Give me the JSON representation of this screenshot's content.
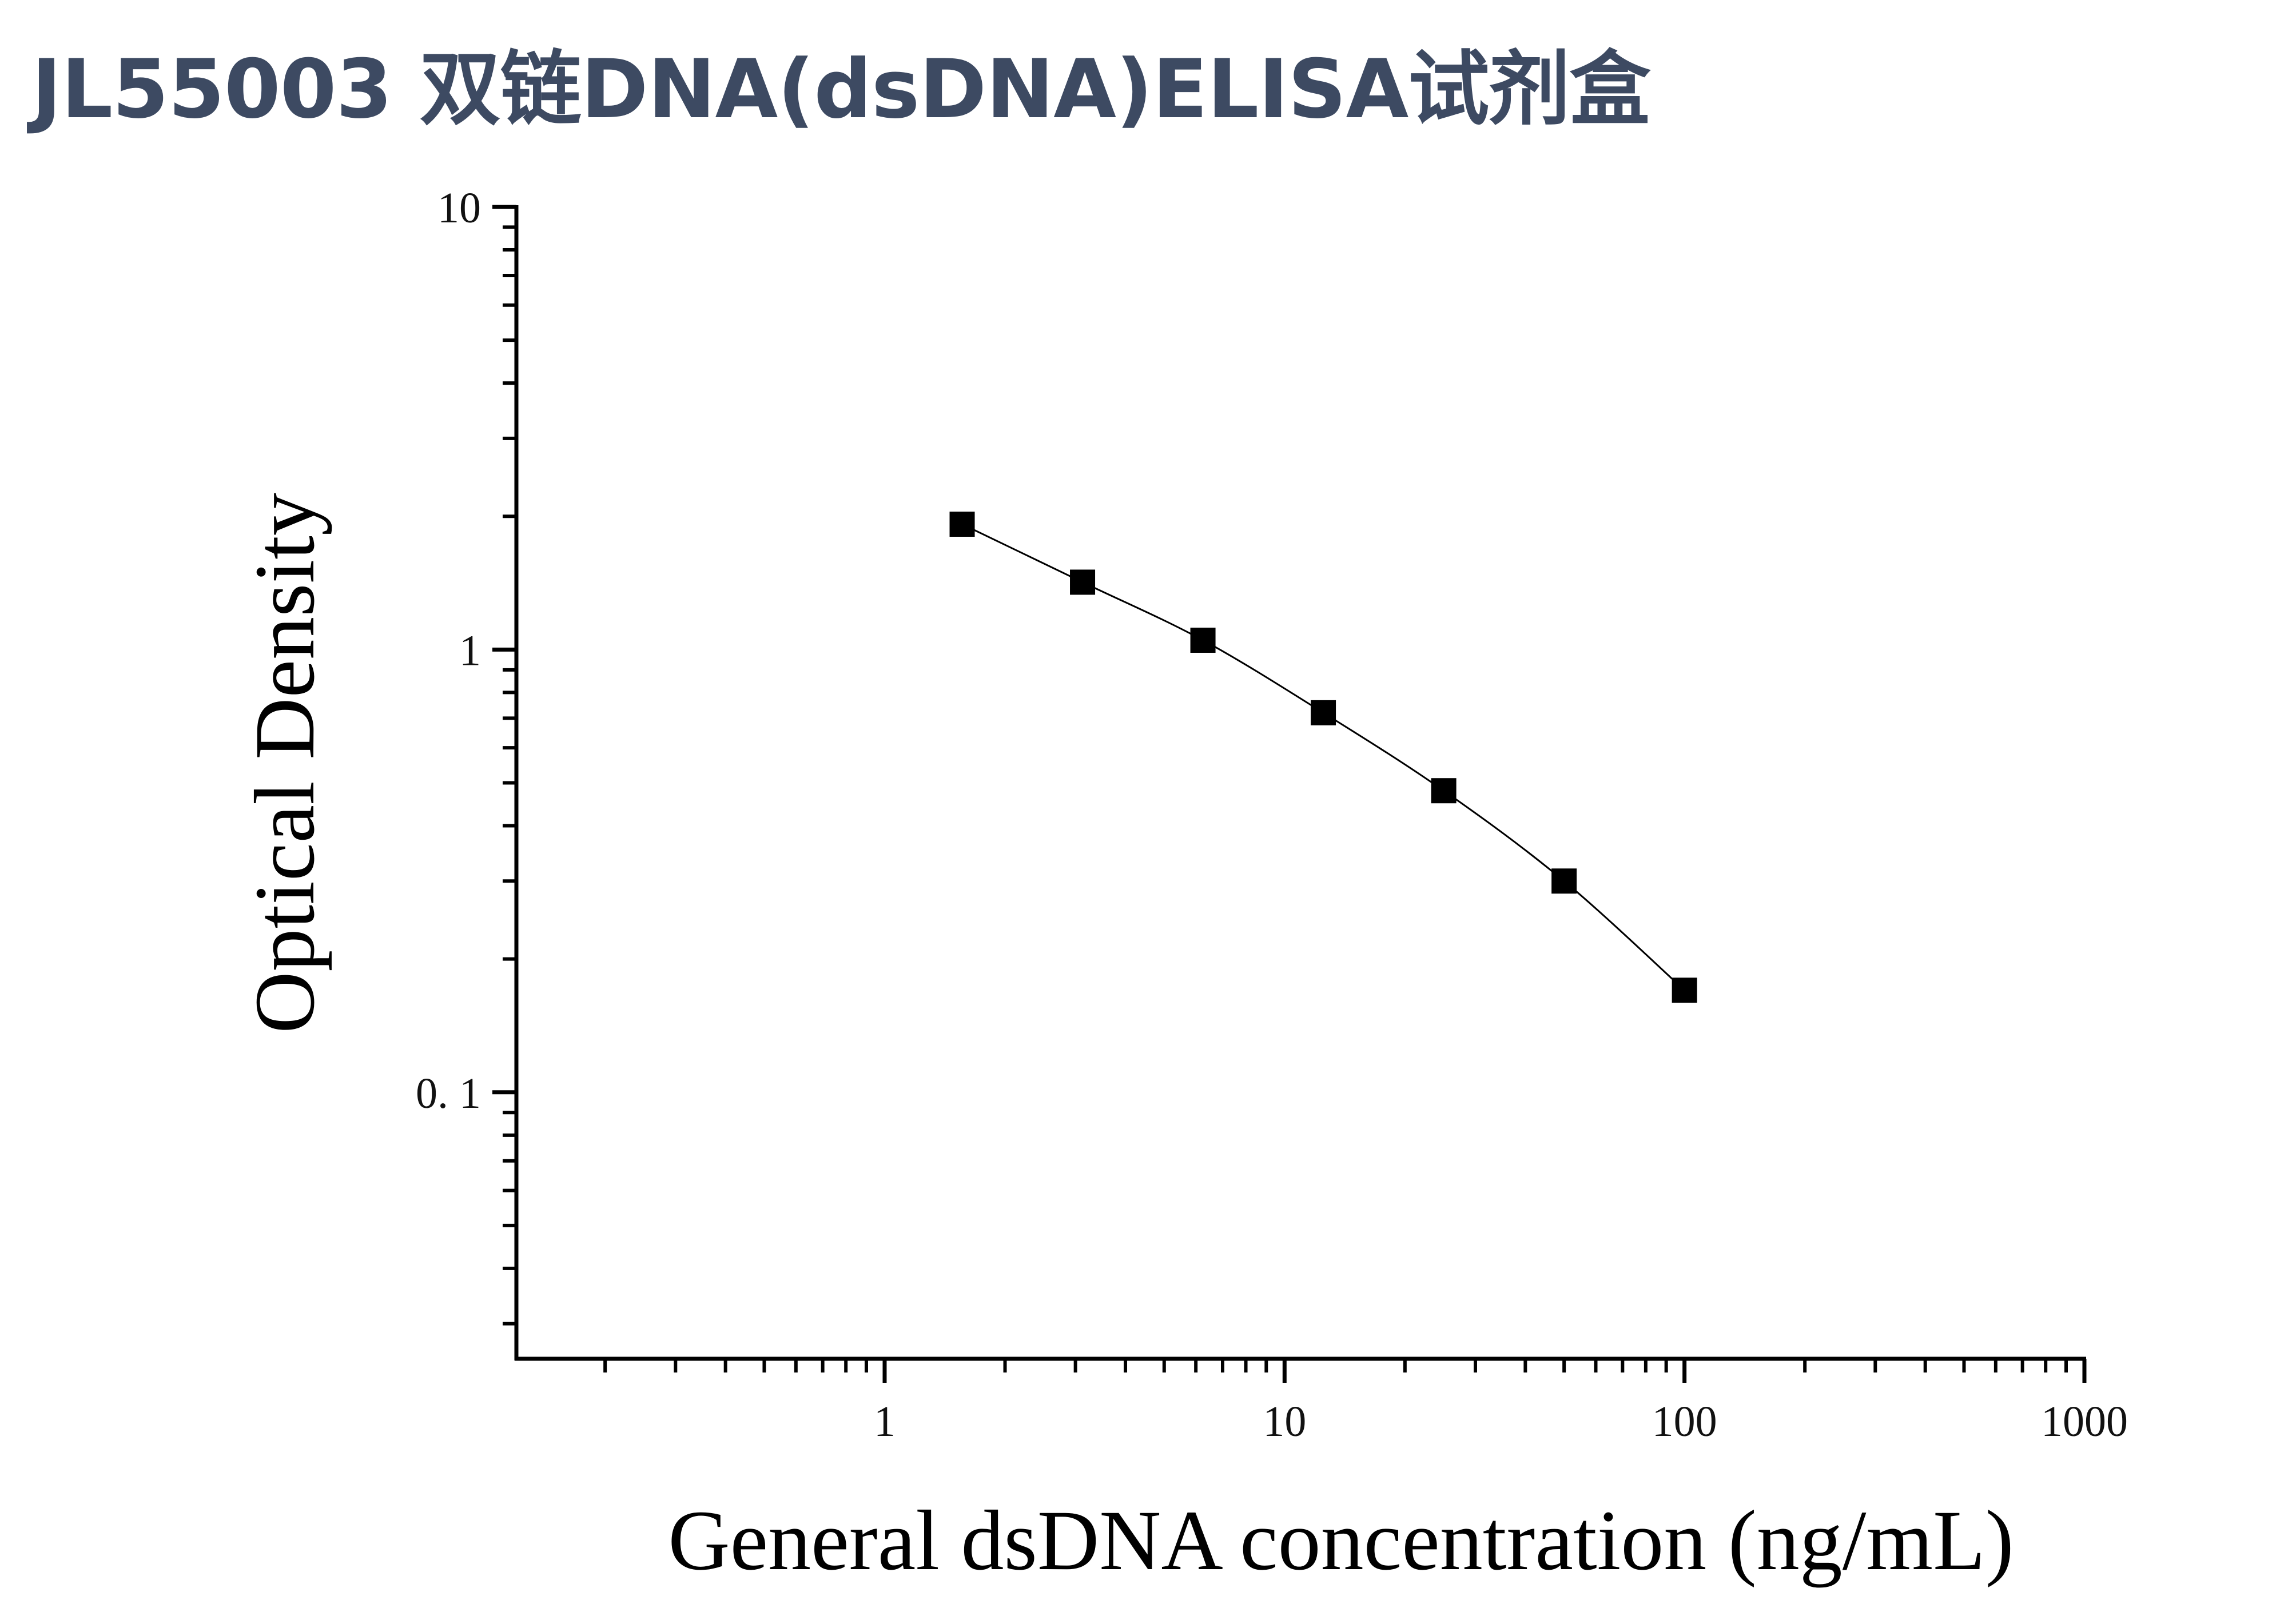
{
  "title": "JL55003 双链DNA(dsDNA)ELISA试剂盒",
  "colors": {
    "title": "#3d4a62",
    "series": "#000000"
  },
  "chart_data": {
    "type": "scatter",
    "title": "JL55003 双链DNA(dsDNA)ELISA试剂盒",
    "xlabel": "General dsDNA concentration (ng/mL)",
    "ylabel": "Optical Density",
    "x_scale": "log",
    "y_scale": "log",
    "xlim": [
      0.12,
      1000
    ],
    "ylim": [
      0.025,
      10
    ],
    "x_ticks": [
      {
        "value": 1,
        "label": "1"
      },
      {
        "value": 10,
        "label": "10"
      },
      {
        "value": 100,
        "label": "100"
      },
      {
        "value": 1000,
        "label": "1000"
      }
    ],
    "y_ticks": [
      {
        "value": 0.1,
        "label": "0. 1"
      },
      {
        "value": 1,
        "label": "1"
      },
      {
        "value": 10,
        "label": "10"
      }
    ],
    "grid": false,
    "legend": "none",
    "series": [
      {
        "marker": "square",
        "line": "smooth",
        "x": [
          1.5625,
          3.125,
          6.25,
          12.5,
          25,
          50,
          100
        ],
        "y": [
          1.92,
          1.42,
          1.05,
          0.72,
          0.48,
          0.3,
          0.17
        ]
      }
    ]
  }
}
